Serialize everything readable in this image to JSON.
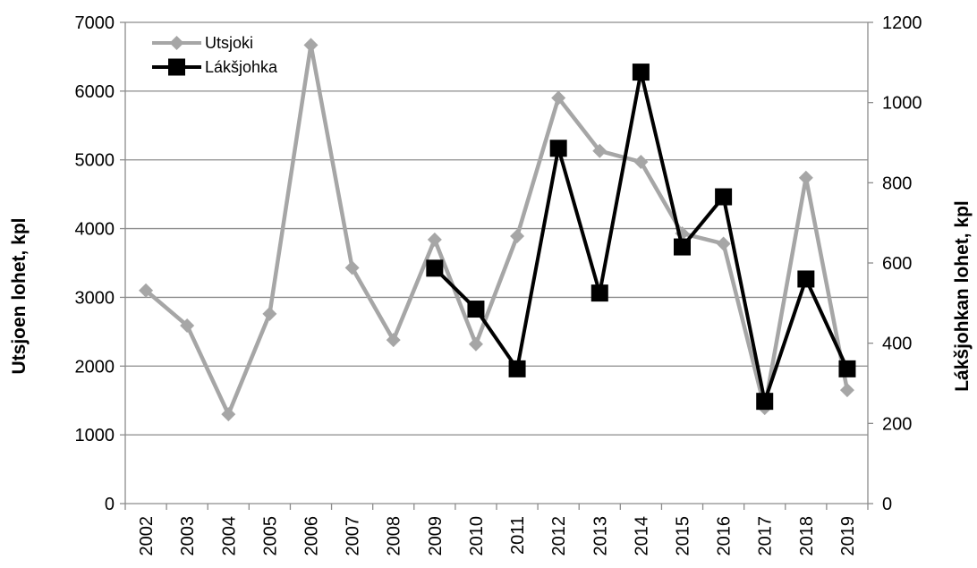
{
  "chart_data": {
    "type": "line",
    "title": "",
    "xlabel": "",
    "ylabel": "Utsjoen lohet, kpl",
    "y2label": "Lákšjohkan lohet, kpl",
    "categories": [
      "2002",
      "2003",
      "2004",
      "2005",
      "2006",
      "2007",
      "2008",
      "2009",
      "2010",
      "2011",
      "2012",
      "2013",
      "2014",
      "2015",
      "2016",
      "2017",
      "2018",
      "2019"
    ],
    "ylim": [
      0,
      7000
    ],
    "y2lim": [
      0,
      1200
    ],
    "yticks": [
      "0",
      "1000",
      "2000",
      "3000",
      "4000",
      "5000",
      "6000",
      "7000"
    ],
    "y2ticks": [
      "0",
      "200",
      "400",
      "600",
      "800",
      "1000",
      "1200"
    ],
    "grid": true,
    "legend_position": "top-left",
    "series": [
      {
        "name": "Utsjoki",
        "axis": "left",
        "color": "#a6a6a6",
        "marker": "diamond",
        "values": [
          3100,
          2590,
          1300,
          2760,
          6670,
          3430,
          2380,
          3840,
          2320,
          3890,
          5900,
          5130,
          4970,
          3930,
          3780,
          1390,
          4740,
          1650
        ]
      },
      {
        "name": "Lákšjohka",
        "axis": "right",
        "color": "#000000",
        "marker": "square",
        "values": [
          null,
          null,
          null,
          null,
          null,
          null,
          null,
          587,
          485,
          336,
          886,
          525,
          1076,
          640,
          765,
          255,
          560,
          336
        ]
      }
    ]
  }
}
